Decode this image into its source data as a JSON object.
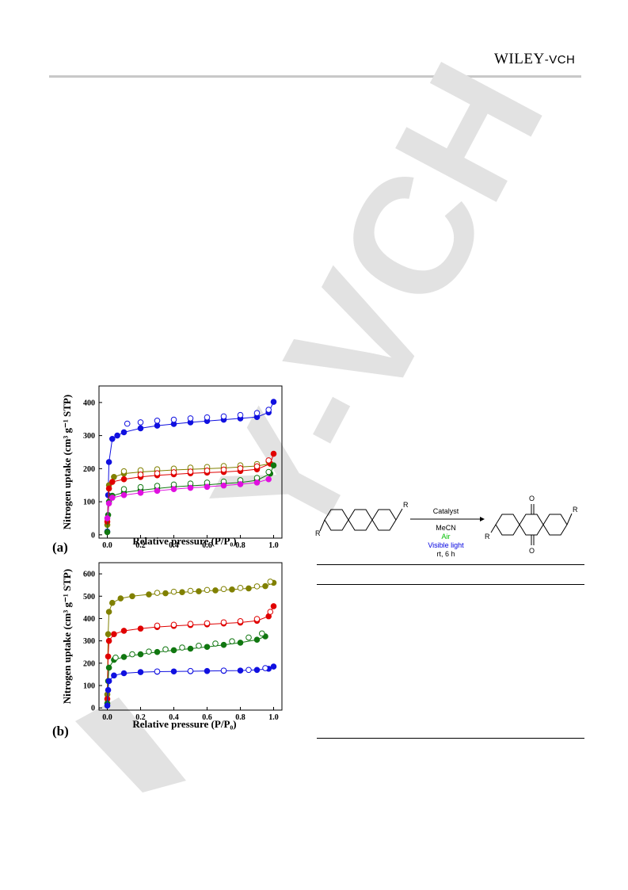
{
  "header": {
    "logo_main": "WILEY",
    "logo_suffix": "-VCH"
  },
  "watermark": {
    "text": "Y-VCH",
    "color": "#d9d9d9"
  },
  "chart_data": [
    {
      "type": "scatter",
      "panel_label": "(a)",
      "xlabel": "Relative pressure (P/P₀)",
      "ylabel": "Nitrogen uptake (cm³ g⁻¹ STP)",
      "xlim": [
        -0.05,
        1.05
      ],
      "ylim": [
        -10,
        450
      ],
      "xticks": [
        "0.0",
        "0.2",
        "0.4",
        "0.6",
        "0.8",
        "1.0"
      ],
      "yticks": [
        "0",
        "100",
        "200",
        "300",
        "400"
      ],
      "ytick_values": [
        0,
        100,
        200,
        300,
        400
      ],
      "series": [
        {
          "color": "#1010e0",
          "ads": [
            [
              0,
              10
            ],
            [
              0.005,
              120
            ],
            [
              0.01,
              220
            ],
            [
              0.03,
              290
            ],
            [
              0.06,
              300
            ],
            [
              0.1,
              310
            ],
            [
              0.2,
              322
            ],
            [
              0.3,
              330
            ],
            [
              0.4,
              335
            ],
            [
              0.5,
              340
            ],
            [
              0.6,
              344
            ],
            [
              0.7,
              348
            ],
            [
              0.8,
              352
            ],
            [
              0.9,
              356
            ],
            [
              0.97,
              370
            ],
            [
              1.0,
              402
            ]
          ],
          "des": [
            [
              0.12,
              336
            ],
            [
              0.2,
              340
            ],
            [
              0.3,
              345
            ],
            [
              0.4,
              348
            ],
            [
              0.5,
              352
            ],
            [
              0.6,
              355
            ],
            [
              0.7,
              358
            ],
            [
              0.8,
              362
            ],
            [
              0.9,
              368
            ],
            [
              0.97,
              378
            ]
          ]
        },
        {
          "color": "#808000",
          "ads": [
            [
              0,
              30
            ],
            [
              0.01,
              150
            ],
            [
              0.04,
              175
            ],
            [
              0.1,
              185
            ],
            [
              0.2,
              190
            ],
            [
              0.3,
              193
            ],
            [
              0.4,
              196
            ],
            [
              0.5,
              198
            ],
            [
              0.6,
              200
            ],
            [
              0.7,
              202
            ],
            [
              0.8,
              205
            ],
            [
              0.9,
              208
            ],
            [
              0.98,
              215
            ]
          ],
          "des": [
            [
              0.1,
              192
            ],
            [
              0.2,
              195
            ],
            [
              0.3,
              198
            ],
            [
              0.4,
              200
            ],
            [
              0.5,
              203
            ],
            [
              0.6,
              205
            ],
            [
              0.7,
              208
            ],
            [
              0.8,
              210
            ],
            [
              0.9,
              214
            ],
            [
              0.97,
              222
            ]
          ]
        },
        {
          "color": "#e00000",
          "ads": [
            [
              0,
              40
            ],
            [
              0.01,
              140
            ],
            [
              0.03,
              160
            ],
            [
              0.1,
              168
            ],
            [
              0.2,
              175
            ],
            [
              0.3,
              180
            ],
            [
              0.4,
              183
            ],
            [
              0.5,
              186
            ],
            [
              0.6,
              188
            ],
            [
              0.7,
              190
            ],
            [
              0.8,
              193
            ],
            [
              0.9,
              198
            ],
            [
              0.98,
              215
            ],
            [
              1.0,
              245
            ]
          ],
          "des": [
            [
              0.2,
              182
            ],
            [
              0.3,
              186
            ],
            [
              0.4,
              189
            ],
            [
              0.5,
              191
            ],
            [
              0.6,
              194
            ],
            [
              0.7,
              197
            ],
            [
              0.8,
              201
            ],
            [
              0.9,
              207
            ],
            [
              0.97,
              225
            ]
          ]
        },
        {
          "color": "#117711",
          "ads": [
            [
              0,
              8
            ],
            [
              0.005,
              60
            ],
            [
              0.01,
              100
            ],
            [
              0.03,
              118
            ],
            [
              0.1,
              128
            ],
            [
              0.2,
              135
            ],
            [
              0.3,
              140
            ],
            [
              0.4,
              145
            ],
            [
              0.5,
              148
            ],
            [
              0.6,
              151
            ],
            [
              0.7,
              155
            ],
            [
              0.8,
              158
            ],
            [
              0.9,
              165
            ],
            [
              0.98,
              185
            ],
            [
              1.0,
              210
            ]
          ],
          "des": [
            [
              0.1,
              138
            ],
            [
              0.2,
              144
            ],
            [
              0.3,
              148
            ],
            [
              0.4,
              152
            ],
            [
              0.5,
              155
            ],
            [
              0.6,
              158
            ],
            [
              0.7,
              161
            ],
            [
              0.8,
              165
            ],
            [
              0.9,
              172
            ],
            [
              0.97,
              190
            ]
          ]
        },
        {
          "color": "#e010e0",
          "ads": [
            [
              0,
              50
            ],
            [
              0.01,
              95
            ],
            [
              0.03,
              112
            ],
            [
              0.1,
              120
            ],
            [
              0.2,
              127
            ],
            [
              0.3,
              133
            ],
            [
              0.4,
              138
            ],
            [
              0.5,
              142
            ],
            [
              0.6,
              145
            ],
            [
              0.7,
              149
            ],
            [
              0.8,
              153
            ],
            [
              0.9,
              158
            ],
            [
              0.97,
              168
            ]
          ],
          "des": []
        }
      ]
    },
    {
      "type": "scatter",
      "panel_label": "(b)",
      "xlabel": "Relative pressure (P/P₀)",
      "ylabel": "Nitrogen uptake (cm³ g⁻¹ STP)",
      "xlim": [
        -0.05,
        1.05
      ],
      "ylim": [
        -10,
        650
      ],
      "xticks": [
        "0.0",
        "0.2",
        "0.4",
        "0.6",
        "0.8",
        "1.0"
      ],
      "yticks": [
        "0",
        "100",
        "200",
        "300",
        "400",
        "500",
        "600"
      ],
      "ytick_values": [
        0,
        100,
        200,
        300,
        400,
        500,
        600
      ],
      "series": [
        {
          "color": "#808000",
          "ads": [
            [
              0,
              60
            ],
            [
              0.005,
              330
            ],
            [
              0.01,
              430
            ],
            [
              0.03,
              470
            ],
            [
              0.08,
              490
            ],
            [
              0.15,
              500
            ],
            [
              0.25,
              508
            ],
            [
              0.35,
              513
            ],
            [
              0.45,
              518
            ],
            [
              0.55,
              522
            ],
            [
              0.65,
              526
            ],
            [
              0.75,
              530
            ],
            [
              0.85,
              535
            ],
            [
              0.95,
              545
            ],
            [
              1.0,
              560
            ]
          ],
          "des": [
            [
              0.3,
              515
            ],
            [
              0.4,
              520
            ],
            [
              0.5,
              524
            ],
            [
              0.6,
              528
            ],
            [
              0.7,
              532
            ],
            [
              0.8,
              537
            ],
            [
              0.9,
              544
            ],
            [
              0.98,
              565
            ]
          ]
        },
        {
          "color": "#e00000",
          "ads": [
            [
              0,
              40
            ],
            [
              0.005,
              230
            ],
            [
              0.01,
              300
            ],
            [
              0.04,
              330
            ],
            [
              0.1,
              345
            ],
            [
              0.2,
              355
            ],
            [
              0.3,
              362
            ],
            [
              0.4,
              367
            ],
            [
              0.5,
              371
            ],
            [
              0.6,
              374
            ],
            [
              0.7,
              378
            ],
            [
              0.8,
              382
            ],
            [
              0.9,
              390
            ],
            [
              0.97,
              410
            ],
            [
              1.0,
              455
            ]
          ],
          "des": [
            [
              0.3,
              368
            ],
            [
              0.4,
              372
            ],
            [
              0.5,
              376
            ],
            [
              0.6,
              379
            ],
            [
              0.7,
              383
            ],
            [
              0.8,
              388
            ],
            [
              0.9,
              398
            ],
            [
              0.98,
              430
            ]
          ]
        },
        {
          "color": "#117711",
          "ads": [
            [
              0,
              20
            ],
            [
              0.005,
              120
            ],
            [
              0.01,
              180
            ],
            [
              0.04,
              215
            ],
            [
              0.1,
              228
            ],
            [
              0.2,
              240
            ],
            [
              0.3,
              250
            ],
            [
              0.4,
              258
            ],
            [
              0.5,
              265
            ],
            [
              0.6,
              273
            ],
            [
              0.7,
              282
            ],
            [
              0.8,
              292
            ],
            [
              0.9,
              305
            ],
            [
              0.95,
              320
            ]
          ],
          "des": [
            [
              0.05,
              225
            ],
            [
              0.15,
              240
            ],
            [
              0.25,
              252
            ],
            [
              0.35,
              262
            ],
            [
              0.45,
              270
            ],
            [
              0.55,
              278
            ],
            [
              0.65,
              288
            ],
            [
              0.75,
              298
            ],
            [
              0.85,
              315
            ],
            [
              0.93,
              333
            ]
          ]
        },
        {
          "color": "#1010e0",
          "ads": [
            [
              0,
              10
            ],
            [
              0.005,
              80
            ],
            [
              0.01,
              120
            ],
            [
              0.04,
              145
            ],
            [
              0.1,
              155
            ],
            [
              0.2,
              160
            ],
            [
              0.3,
              162
            ],
            [
              0.4,
              163
            ],
            [
              0.5,
              164
            ],
            [
              0.6,
              165
            ],
            [
              0.7,
              166
            ],
            [
              0.8,
              167
            ],
            [
              0.9,
              170
            ],
            [
              0.97,
              175
            ],
            [
              1.0,
              185
            ]
          ],
          "des": [
            [
              0.3,
              163
            ],
            [
              0.5,
              165
            ],
            [
              0.7,
              167
            ],
            [
              0.85,
              170
            ],
            [
              0.95,
              178
            ]
          ]
        }
      ]
    }
  ],
  "scheme": {
    "catalyst": "Catalyst",
    "solvent": "MeCN",
    "air": "Air",
    "light": "Visible light",
    "conditions": "rt, 6 h",
    "r_label": "R",
    "o_label": "O",
    "air_color": "#00c000",
    "light_color": "#0000e0"
  }
}
